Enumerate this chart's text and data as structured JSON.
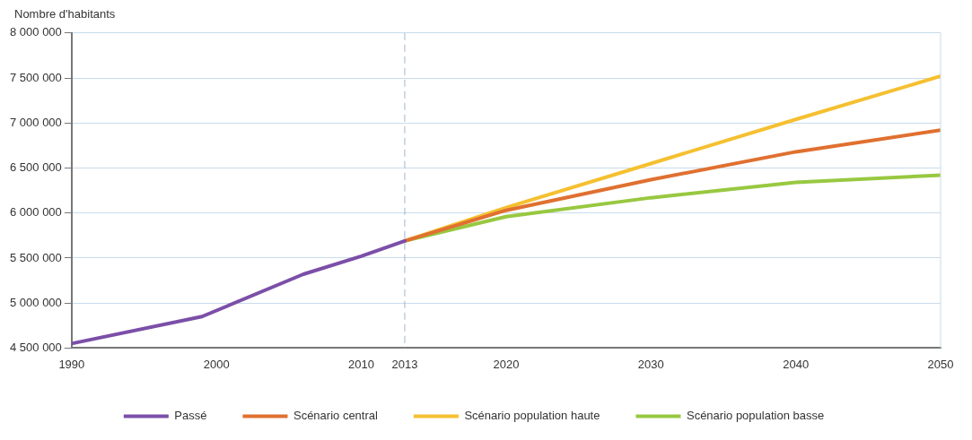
{
  "chart_data": {
    "type": "line",
    "ylabel": "Nombre d'habitants",
    "xlim": [
      1990,
      2050
    ],
    "xticks": [
      1990,
      2000,
      2010,
      2013,
      2020,
      2030,
      2040,
      2050
    ],
    "ylim": [
      4500000,
      8000000
    ],
    "yticks": [
      {
        "value": 4500000,
        "label": "4 500 000"
      },
      {
        "value": 5000000,
        "label": "5 000 000"
      },
      {
        "value": 5500000,
        "label": "5 500 000"
      },
      {
        "value": 6000000,
        "label": "6 000 000"
      },
      {
        "value": 6500000,
        "label": "6 500 000"
      },
      {
        "value": 7000000,
        "label": "7 000 000"
      },
      {
        "value": 7500000,
        "label": "7 500 000"
      },
      {
        "value": 8000000,
        "label": "8 000 000"
      }
    ],
    "series": [
      {
        "name": "Passé",
        "color": "#7b4fa8",
        "x": [
          1990,
          1999,
          2006,
          2010,
          2013
        ],
        "values": [
          4550000,
          4850000,
          5320000,
          5520000,
          5690000
        ]
      },
      {
        "name": "Scénario central",
        "color": "#e07030",
        "x": [
          2013,
          2020,
          2030,
          2040,
          2050
        ],
        "values": [
          5690000,
          6030000,
          6370000,
          6680000,
          6920000
        ]
      },
      {
        "name": "Scénario population haute",
        "color": "#f5c030",
        "x": [
          2013,
          2020,
          2030,
          2040,
          2050
        ],
        "values": [
          5690000,
          6060000,
          6550000,
          7040000,
          7520000
        ]
      },
      {
        "name": "Scénario population basse",
        "color": "#98c840",
        "x": [
          2013,
          2020,
          2030,
          2040,
          2050
        ],
        "values": [
          5690000,
          5960000,
          6170000,
          6340000,
          6420000
        ]
      }
    ],
    "ref_lines": [
      {
        "axis": "x",
        "value": 2013,
        "color": "#9fb4cc",
        "line_style": "dashed"
      }
    ],
    "grid": "y",
    "legend": "bottom",
    "marker": "none",
    "line_style": "solid"
  }
}
